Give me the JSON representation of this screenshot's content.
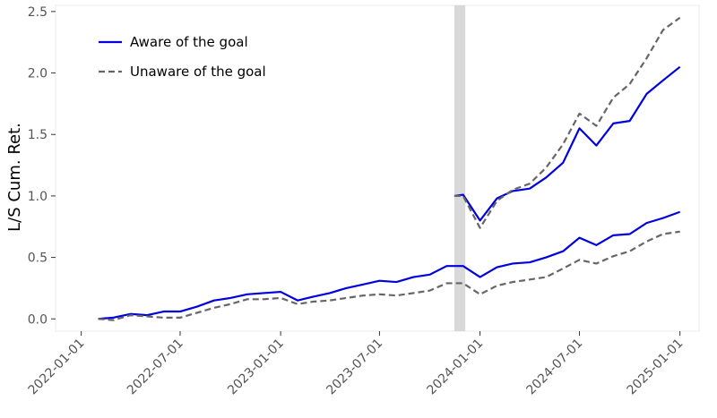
{
  "chart_data": {
    "type": "line",
    "title": "",
    "xlabel": "",
    "ylabel": "L/S Cum. Ret.",
    "ylim": [
      -0.1,
      2.55
    ],
    "xlim": [
      "2021-11-15",
      "2025-02-05"
    ],
    "yticks": [
      0.0,
      0.5,
      1.0,
      1.5,
      2.0,
      2.5
    ],
    "ytick_labels": [
      "0.0",
      "0.5",
      "1.0",
      "1.5",
      "2.0",
      "2.5"
    ],
    "xticks": [
      "2022-01-01",
      "2022-07-01",
      "2023-01-01",
      "2023-07-01",
      "2024-01-01",
      "2024-07-01",
      "2025-01-01"
    ],
    "xtick_labels": [
      "2022-01-01",
      "2022-07-01",
      "2023-01-01",
      "2023-07-01",
      "2024-01-01",
      "2024-07-01",
      "2025-01-01"
    ],
    "grid": false,
    "legend_position": "top-left",
    "shaded_region": {
      "start": "2023-11-15",
      "end": "2023-12-05",
      "color": "#d9d9d9"
    },
    "legend": [
      {
        "label": "Aware of the goal",
        "color": "#0000dd",
        "dash": "solid"
      },
      {
        "label": "Unaware of the goal",
        "color": "#666666",
        "dash": "dashed"
      }
    ],
    "series": [
      {
        "name": "Aware of the goal",
        "color": "#0000dd",
        "dash": "solid",
        "x": [
          "2022-02-01",
          "2022-03-01",
          "2022-04-01",
          "2022-05-01",
          "2022-06-01",
          "2022-07-01",
          "2022-08-01",
          "2022-09-01",
          "2022-10-01",
          "2022-11-01",
          "2022-12-01",
          "2023-01-01",
          "2023-02-01",
          "2023-03-01",
          "2023-04-01",
          "2023-05-01",
          "2023-06-01",
          "2023-07-01",
          "2023-08-01",
          "2023-09-01",
          "2023-10-01",
          "2023-11-01",
          "2023-12-01",
          "2024-01-01",
          "2024-02-01",
          "2024-03-01",
          "2024-04-01",
          "2024-05-01",
          "2024-06-01",
          "2024-07-01",
          "2024-08-01",
          "2024-09-01",
          "2024-10-01",
          "2024-11-01",
          "2024-12-01",
          "2025-01-01"
        ],
        "values": [
          0.0,
          0.01,
          0.04,
          0.03,
          0.06,
          0.06,
          0.1,
          0.15,
          0.17,
          0.2,
          0.21,
          0.22,
          0.15,
          0.18,
          0.21,
          0.25,
          0.28,
          0.31,
          0.3,
          0.34,
          0.36,
          0.43,
          0.43,
          0.34,
          0.42,
          0.45,
          0.46,
          0.5,
          0.55,
          0.66,
          0.6,
          0.68,
          0.69,
          0.78,
          0.82,
          0.87
        ]
      },
      {
        "name": "Unaware of the goal",
        "color": "#666666",
        "dash": "dashed",
        "x": [
          "2022-02-01",
          "2022-03-01",
          "2022-04-01",
          "2022-05-01",
          "2022-06-01",
          "2022-07-01",
          "2022-08-01",
          "2022-09-01",
          "2022-10-01",
          "2022-11-01",
          "2022-12-01",
          "2023-01-01",
          "2023-02-01",
          "2023-03-01",
          "2023-04-01",
          "2023-05-01",
          "2023-06-01",
          "2023-07-01",
          "2023-08-01",
          "2023-09-01",
          "2023-10-01",
          "2023-11-01",
          "2023-12-01",
          "2024-01-01",
          "2024-02-01",
          "2024-03-01",
          "2024-04-01",
          "2024-05-01",
          "2024-06-01",
          "2024-07-01",
          "2024-08-01",
          "2024-09-01",
          "2024-10-01",
          "2024-11-01",
          "2024-12-01",
          "2025-01-01"
        ],
        "values": [
          0.0,
          -0.01,
          0.03,
          0.02,
          0.01,
          0.01,
          0.05,
          0.09,
          0.12,
          0.16,
          0.16,
          0.17,
          0.12,
          0.14,
          0.15,
          0.17,
          0.19,
          0.2,
          0.19,
          0.21,
          0.23,
          0.29,
          0.29,
          0.2,
          0.27,
          0.3,
          0.32,
          0.34,
          0.41,
          0.48,
          0.45,
          0.51,
          0.55,
          0.63,
          0.69,
          0.71
        ]
      },
      {
        "name": "Aware of the goal",
        "color": "#0000dd",
        "dash": "solid",
        "x": [
          "2023-11-15",
          "2023-12-01",
          "2024-01-01",
          "2024-02-01",
          "2024-03-01",
          "2024-04-01",
          "2024-05-01",
          "2024-06-01",
          "2024-07-01",
          "2024-08-01",
          "2024-09-01",
          "2024-10-01",
          "2024-11-01",
          "2024-12-01",
          "2025-01-01"
        ],
        "values": [
          1.0,
          1.01,
          0.8,
          0.98,
          1.04,
          1.06,
          1.15,
          1.27,
          1.55,
          1.41,
          1.59,
          1.61,
          1.83,
          1.94,
          2.05
        ]
      },
      {
        "name": "Unaware of the goal",
        "color": "#666666",
        "dash": "dashed",
        "x": [
          "2023-11-15",
          "2023-12-01",
          "2024-01-01",
          "2024-02-01",
          "2024-03-01",
          "2024-04-01",
          "2024-05-01",
          "2024-06-01",
          "2024-07-01",
          "2024-08-01",
          "2024-09-01",
          "2024-10-01",
          "2024-11-01",
          "2024-12-01",
          "2025-01-01"
        ],
        "values": [
          1.0,
          1.0,
          0.74,
          0.96,
          1.05,
          1.1,
          1.23,
          1.42,
          1.67,
          1.57,
          1.8,
          1.91,
          2.12,
          2.35,
          2.45
        ]
      }
    ]
  }
}
